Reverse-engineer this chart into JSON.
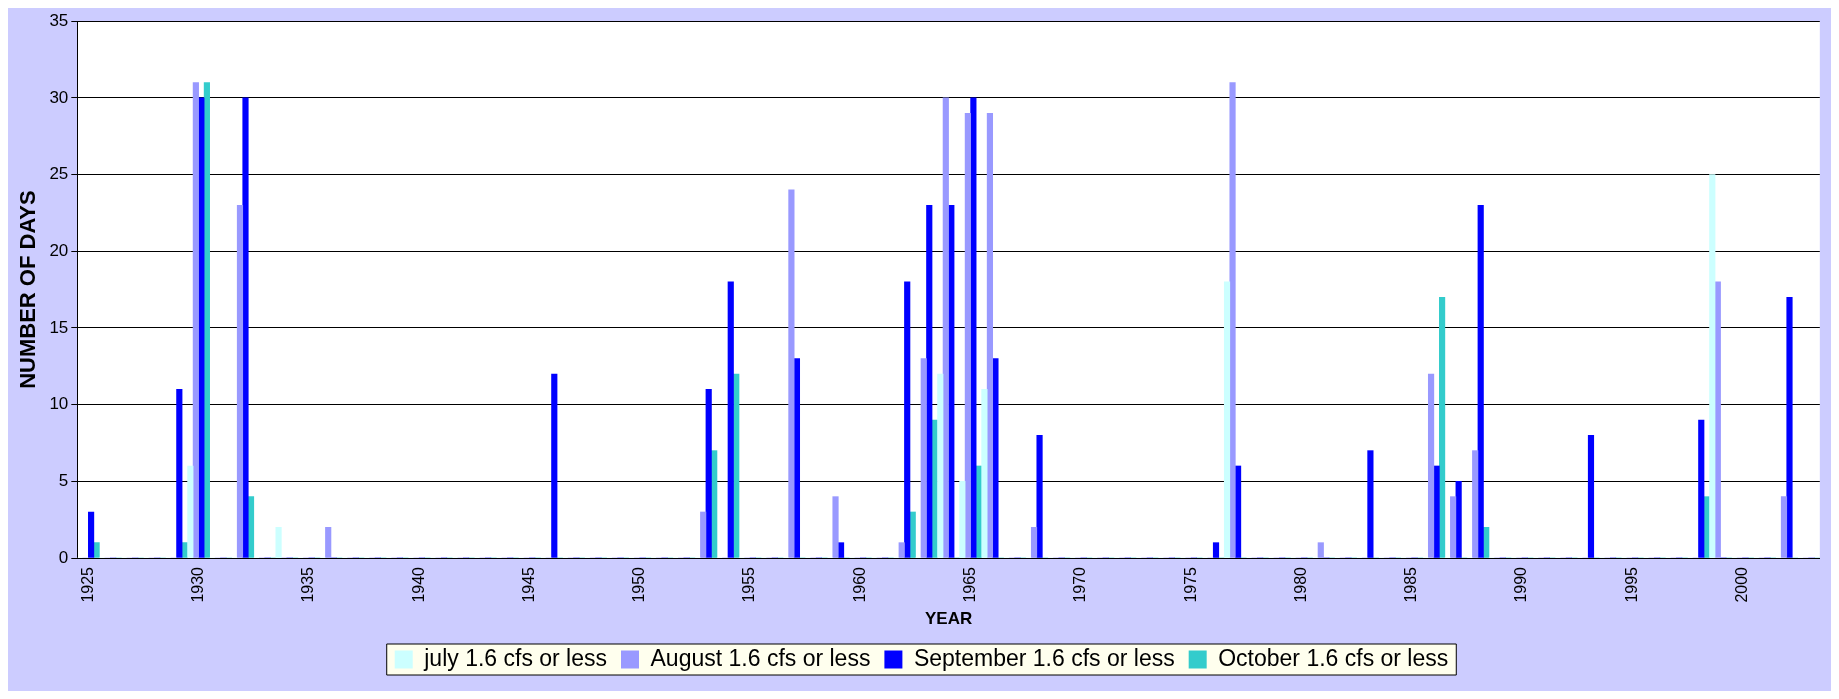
{
  "chart_data": {
    "type": "bar",
    "xlabel": "YEAR",
    "ylabel": "NUMBER OF DAYS",
    "categories": [
      "1925",
      null,
      null,
      null,
      null,
      "1930",
      null,
      null,
      null,
      null,
      "1935",
      null,
      null,
      null,
      null,
      "1940",
      null,
      null,
      null,
      null,
      "1945",
      null,
      null,
      null,
      null,
      "1950",
      null,
      null,
      null,
      null,
      "1955",
      null,
      null,
      null,
      null,
      "1960",
      null,
      null,
      null,
      null,
      "1965",
      null,
      null,
      null,
      null,
      "1970",
      null,
      null,
      null,
      null,
      "1975",
      null,
      null,
      null,
      null,
      "1980",
      null,
      null,
      null,
      null,
      "1985",
      null,
      null,
      null,
      null,
      "1990",
      null,
      null,
      null,
      null,
      "1995",
      null,
      null,
      null,
      null,
      "2000",
      null,
      null,
      null
    ],
    "series": [
      {
        "name": "july 1.6 cfs or less",
        "color": "#ccffff",
        "values": [
          0,
          0,
          0,
          0,
          0,
          6,
          0,
          0,
          0,
          2,
          0,
          0,
          0,
          0,
          0,
          0,
          0,
          0,
          0,
          0,
          0,
          0,
          0,
          0,
          0,
          0,
          0,
          0,
          0,
          0,
          0,
          0,
          0,
          0,
          0,
          0,
          0,
          0,
          0,
          12,
          5,
          11,
          0,
          0,
          0,
          0,
          0,
          0,
          0,
          0,
          0,
          0,
          18,
          0,
          0,
          0,
          0,
          0,
          0,
          0,
          0,
          0,
          0,
          0,
          0,
          0,
          0,
          0,
          0,
          0,
          0,
          0,
          0,
          0,
          25,
          0,
          0,
          0,
          0
        ]
      },
      {
        "name": "August 1.6 cfs or less",
        "color": "#9999ff",
        "values": [
          0,
          0,
          0,
          0,
          0,
          31,
          0,
          23,
          0,
          0,
          0,
          2,
          0,
          0,
          0,
          0,
          0,
          0,
          0,
          0,
          0,
          0,
          0,
          0,
          0,
          0,
          0,
          0,
          3,
          0,
          0,
          0,
          24,
          0,
          4,
          0,
          0,
          1,
          13,
          30,
          29,
          29,
          0,
          2,
          0,
          0,
          0,
          0,
          0,
          0,
          0,
          0,
          31,
          0,
          0,
          0,
          1,
          0,
          0,
          0,
          0,
          12,
          4,
          7,
          0,
          0,
          0,
          0,
          0,
          0,
          0,
          0,
          0,
          0,
          18,
          0,
          0,
          4,
          0
        ]
      },
      {
        "name": "September 1.6 cfs or less",
        "color": "#0000ff",
        "values": [
          3,
          0,
          0,
          0,
          11,
          30,
          0,
          30,
          0,
          0,
          0,
          0,
          0,
          0,
          0,
          0,
          0,
          0,
          0,
          0,
          0,
          12,
          0,
          0,
          0,
          0,
          0,
          0,
          11,
          18,
          0,
          0,
          13,
          0,
          1,
          0,
          0,
          18,
          23,
          23,
          30,
          13,
          0,
          8,
          0,
          0,
          0,
          0,
          0,
          0,
          0,
          1,
          6,
          0,
          0,
          0,
          0,
          0,
          7,
          0,
          0,
          6,
          5,
          23,
          0,
          0,
          0,
          0,
          8,
          0,
          0,
          0,
          0,
          9,
          0,
          0,
          0,
          17,
          0
        ]
      },
      {
        "name": "October 1.6 cfs or less",
        "color": "#33cccc",
        "values": [
          1,
          0,
          0,
          0,
          1,
          31,
          0,
          4,
          0,
          0,
          0,
          0,
          0,
          0,
          0,
          0,
          0,
          0,
          0,
          0,
          0,
          0,
          0,
          0,
          0,
          0,
          0,
          0,
          7,
          12,
          0,
          0,
          0,
          0,
          0,
          0,
          0,
          3,
          9,
          0,
          6,
          0,
          0,
          0,
          0,
          0,
          0,
          0,
          0,
          0,
          0,
          0,
          0,
          0,
          0,
          0,
          0,
          0,
          0,
          0,
          0,
          17,
          0,
          2,
          0,
          0,
          0,
          0,
          0,
          0,
          0,
          0,
          0,
          4,
          0,
          0,
          0,
          0,
          0
        ]
      }
    ],
    "ylim": [
      0,
      35
    ],
    "yticks": [
      0,
      5,
      10,
      15,
      20,
      25,
      30,
      35
    ],
    "grid": "y",
    "legend": "bottom"
  }
}
